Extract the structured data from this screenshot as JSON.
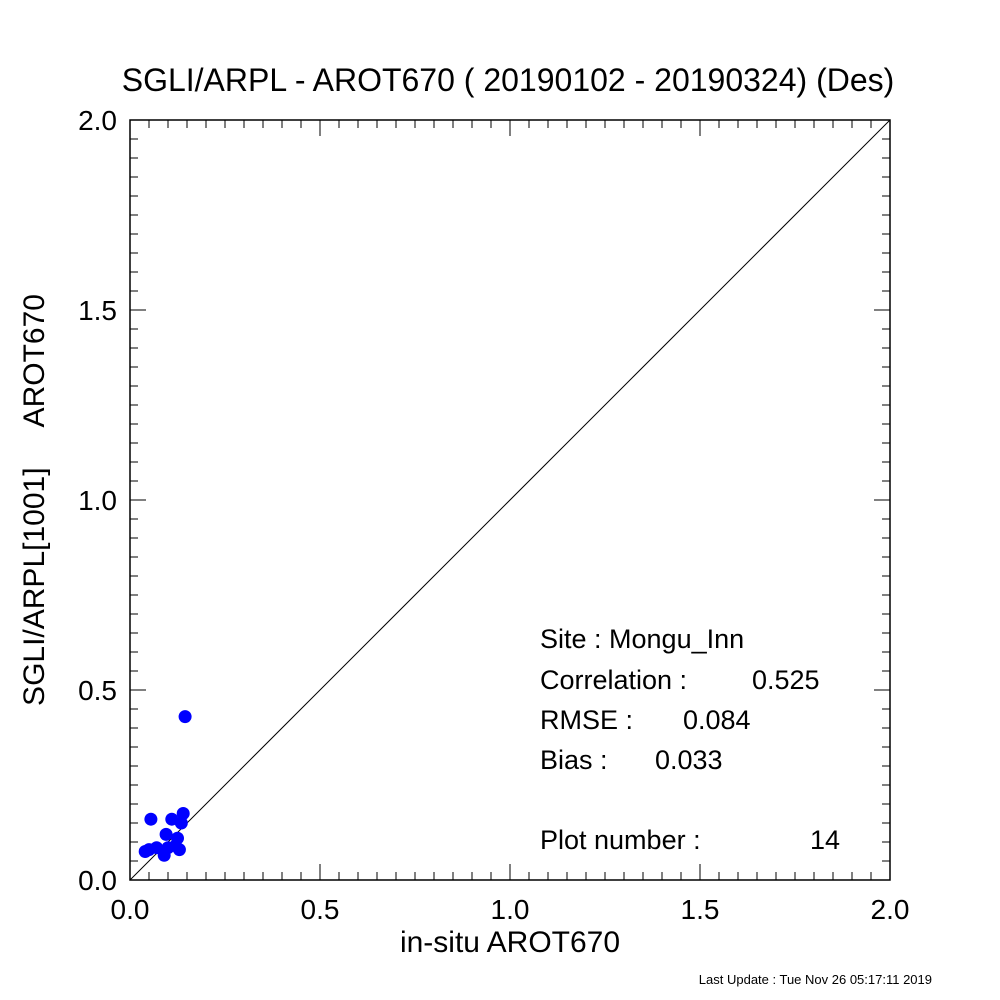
{
  "chart_data": {
    "type": "scatter",
    "title": "SGLI/ARPL - AROT670 ( 20190102 - 20190324) (Des)",
    "xlabel": "in-situ AROT670",
    "ylabel": "SGLI/ARPL[1001]     AROT670",
    "xlim": [
      0.0,
      2.0
    ],
    "ylim": [
      0.0,
      2.0
    ],
    "x_ticks": [
      "0.0",
      "0.5",
      "1.0",
      "1.5",
      "2.0"
    ],
    "y_ticks": [
      "0.0",
      "0.5",
      "1.0",
      "1.5",
      "2.0"
    ],
    "reference_line": "1:1",
    "point_color": "#0000ff",
    "grid": false,
    "points": [
      {
        "x": 0.04,
        "y": 0.075
      },
      {
        "x": 0.05,
        "y": 0.08
      },
      {
        "x": 0.07,
        "y": 0.085
      },
      {
        "x": 0.09,
        "y": 0.065
      },
      {
        "x": 0.095,
        "y": 0.12
      },
      {
        "x": 0.11,
        "y": 0.16
      },
      {
        "x": 0.12,
        "y": 0.09
      },
      {
        "x": 0.125,
        "y": 0.11
      },
      {
        "x": 0.135,
        "y": 0.15
      },
      {
        "x": 0.14,
        "y": 0.175
      },
      {
        "x": 0.145,
        "y": 0.43
      },
      {
        "x": 0.055,
        "y": 0.16
      },
      {
        "x": 0.1,
        "y": 0.085
      },
      {
        "x": 0.13,
        "y": 0.08
      }
    ],
    "stats": {
      "site": "Site : Mongu_Inn",
      "correlation_label": "Correlation :",
      "correlation_value": "0.525",
      "rmse_label": "RMSE :",
      "rmse_value": "0.084",
      "bias_label": "Bias :",
      "bias_value": "0.033",
      "plot_number_label": "Plot number :",
      "plot_number_value": "14"
    },
    "footer": "Last Update : Tue Nov 26 05:17:11 2019"
  }
}
